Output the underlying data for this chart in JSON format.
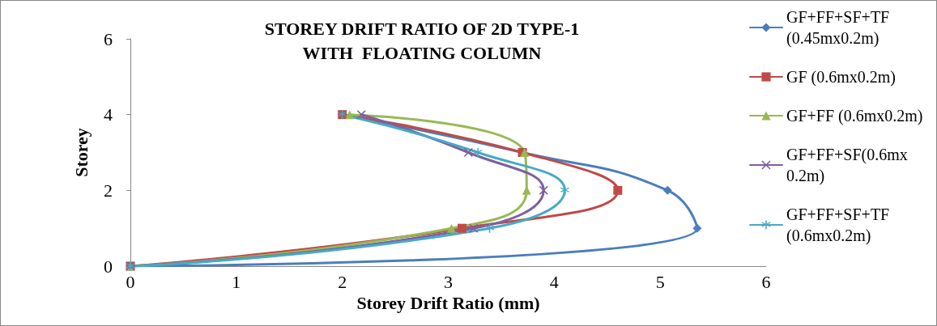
{
  "chart_data": {
    "type": "line",
    "title": "STOREY DRIFT RATIO OF 2D TYPE-1\nWITH  FLOATING COLUMN",
    "xlabel": "Storey Drift Ratio (mm)",
    "ylabel": "Storey",
    "series": [
      {
        "name": "GF+FF+SF+TF (0.45mx0.2m)",
        "color": "#4a7ebb",
        "marker": "diamond",
        "x": [
          0,
          5.35,
          5.07,
          3.7,
          2.0
        ],
        "values": [
          0,
          1,
          2,
          3,
          4
        ]
      },
      {
        "name": "GF (0.6mx0.2m)",
        "color": "#be4b48",
        "marker": "square",
        "x": [
          0,
          3.13,
          4.6,
          3.7,
          2.0
        ],
        "values": [
          0,
          1,
          2,
          3,
          4
        ]
      },
      {
        "name": "GF+FF (0.6mx0.2m)",
        "color": "#98b954",
        "marker": "triangle",
        "x": [
          0,
          3.03,
          3.74,
          3.72,
          2.07
        ],
        "values": [
          0,
          1,
          2,
          3,
          4
        ]
      },
      {
        "name": "GF+FF+SF(0.6mx 0.2m)",
        "color": "#7d60a0",
        "marker": "cross",
        "x": [
          0,
          3.24,
          3.9,
          3.19,
          2.18
        ],
        "values": [
          0,
          1,
          2,
          3,
          4
        ]
      },
      {
        "name": "GF+FF+SF+TF (0.6mx0.2m)",
        "color": "#46aac5",
        "marker": "star",
        "x": [
          0,
          3.39,
          4.1,
          3.28,
          2.0
        ],
        "values": [
          0,
          1,
          2,
          3,
          4
        ]
      }
    ],
    "xlim": [
      0,
      6
    ],
    "xticks": [
      0,
      1,
      2,
      3,
      4,
      5,
      6
    ],
    "ylim": [
      0,
      6
    ],
    "yticks": [
      0,
      2,
      4,
      6
    ],
    "grid": false,
    "legend": "right",
    "line_style": "solid"
  }
}
